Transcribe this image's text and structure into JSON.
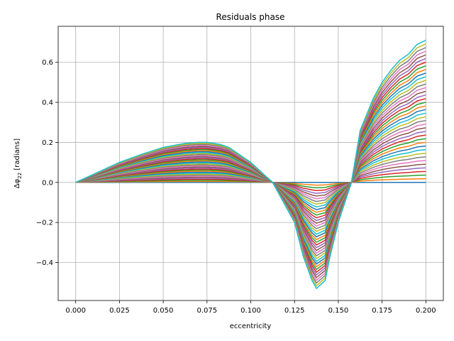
{
  "chart_data": {
    "type": "line",
    "title": "Residuals phase",
    "xlabel": "eccentricity",
    "ylabel": "Δφ22 [radians]",
    "xlim": [
      -0.01,
      0.21
    ],
    "ylim": [
      -0.59,
      0.78
    ],
    "x_ticks": [
      0.0,
      0.025,
      0.05,
      0.075,
      0.1,
      0.125,
      0.15,
      0.175,
      0.2
    ],
    "x_tick_labels": [
      "0.000",
      "0.025",
      "0.050",
      "0.075",
      "0.100",
      "0.125",
      "0.150",
      "0.175",
      "0.200"
    ],
    "y_ticks": [
      -0.4,
      -0.2,
      0.0,
      0.2,
      0.4,
      0.6
    ],
    "y_tick_labels": [
      "−0.4",
      "−0.2",
      "0.0",
      "0.2",
      "0.4",
      "0.6"
    ],
    "grid": true,
    "legend": "none",
    "n_series": 40,
    "colors": [
      "#1f77b4",
      "#ff7f0e",
      "#2ca02c",
      "#d62728",
      "#9467bd",
      "#8c564b",
      "#e377c2",
      "#7f7f7f",
      "#bcbd22",
      "#17becf"
    ],
    "x": [
      0.0,
      0.0125,
      0.025,
      0.0375,
      0.05,
      0.0625,
      0.07,
      0.075,
      0.0825,
      0.0875,
      0.1,
      0.1075,
      0.1125,
      0.125,
      0.13,
      0.135,
      0.1375,
      0.14,
      0.1425,
      0.145,
      0.15,
      0.1575,
      0.1625,
      0.17,
      0.175,
      0.18,
      0.185,
      0.19,
      0.195,
      0.2
    ],
    "shape_max": [
      0.0,
      0.05,
      0.1,
      0.14,
      0.175,
      0.195,
      0.2,
      0.2,
      0.19,
      0.175,
      0.1,
      0.04,
      0.0,
      -0.2,
      -0.37,
      -0.49,
      -0.53,
      -0.51,
      -0.49,
      -0.38,
      -0.2,
      0.0,
      0.26,
      0.42,
      0.5,
      0.56,
      0.61,
      0.64,
      0.69,
      0.71
    ]
  }
}
